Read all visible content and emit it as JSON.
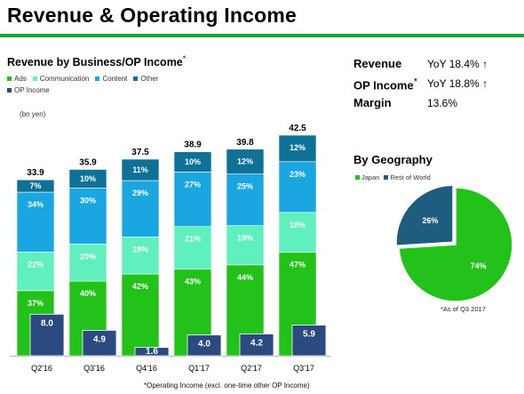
{
  "slide": {
    "title": "Revenue & Operating Income"
  },
  "kpis": [
    {
      "label": "Revenue",
      "suffix": "",
      "value": "YoY 18.4%",
      "arrow": "↑"
    },
    {
      "label": "OP Income",
      "suffix": "*",
      "value": "YoY 18.8%",
      "arrow": "↑"
    },
    {
      "label": "Margin",
      "suffix": "",
      "value": "13.6%",
      "arrow": ""
    }
  ],
  "chart_data": [
    {
      "type": "bar",
      "title": "Revenue by Business/OP Income",
      "title_mark": "*",
      "unit_label": "(bn yen)",
      "categories": [
        "Q2'16",
        "Q3'16",
        "Q4'16",
        "Q1'17",
        "Q2'17",
        "Q3'17"
      ],
      "stacked": true,
      "series": [
        {
          "name": "Ads",
          "color": "#22c21a",
          "percent_labels": [
            "37%",
            "40%",
            "42%",
            "43%",
            "44%",
            "47%"
          ]
        },
        {
          "name": "Communication",
          "color": "#5ff0bd",
          "percent_labels": [
            "22%",
            "20%",
            "19%",
            "21%",
            "19%",
            "18%"
          ]
        },
        {
          "name": "Content",
          "color": "#1aa6e0",
          "percent_labels": [
            "34%",
            "30%",
            "29%",
            "27%",
            "25%",
            "23%"
          ]
        },
        {
          "name": "Other",
          "color": "#0e7196",
          "percent_labels": [
            "7%",
            "10%",
            "11%",
            "10%",
            "12%",
            "12%"
          ]
        }
      ],
      "revenue_totals": [
        33.9,
        35.9,
        37.5,
        38.9,
        39.8,
        42.5
      ],
      "revenue_total_labels": [
        "33.9",
        "35.9",
        "37.5",
        "38.9",
        "39.8",
        "42.5"
      ],
      "op_income": {
        "name": "OP Income",
        "color": "#2a4a80",
        "values": [
          8.0,
          4.9,
          1.6,
          4.0,
          4.2,
          5.9
        ],
        "labels": [
          "8.0",
          "4.9",
          "1.6",
          "4.0",
          "4.2",
          "5.9"
        ]
      },
      "ylim": [
        0,
        42.5
      ],
      "footnote": "*Operating Income (excl. one-time other OP Income)"
    },
    {
      "type": "pie",
      "title": "By Geography",
      "slices": [
        {
          "name": "Japan",
          "value": 74,
          "label": "74%",
          "color": "#22c21a"
        },
        {
          "name": "Rest of World",
          "value": 26,
          "label": "26%",
          "color": "#1f5d80"
        }
      ],
      "note": "*As of Q3 2017"
    }
  ]
}
